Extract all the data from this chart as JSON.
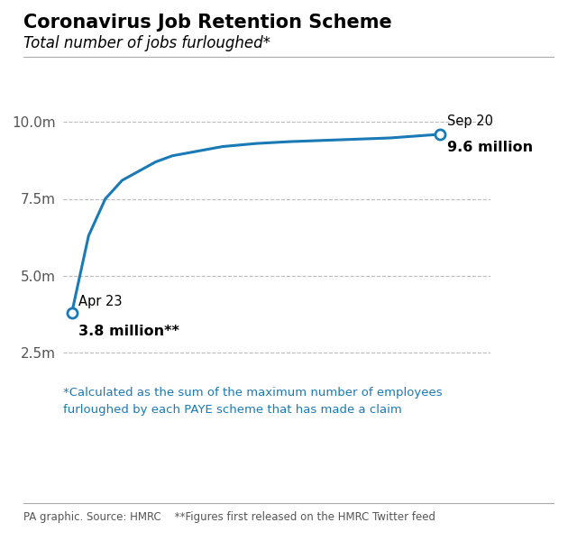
{
  "title_bold": "Coronavirus Job Retention Scheme",
  "title_italic": "Total number of jobs furloughed*",
  "line_color": "#1a7ab5",
  "background_color": "#ffffff",
  "ylim": [
    2000000,
    10800000
  ],
  "yticks": [
    2500000,
    5000000,
    7500000,
    10000000
  ],
  "ytick_labels": [
    "2.5m",
    "5.0m",
    "7.5m",
    "10.0m"
  ],
  "footnote_color": "#1a7ab5",
  "footnote_text": "*Calculated as the sum of the maximum number of employees\nfurloughed by each PAYE scheme that has made a claim",
  "source_text": "PA graphic. Source: HMRC    **Figures first released on the HMRC Twitter feed",
  "grid_color": "#bbbbbb",
  "x_data": [
    0,
    1,
    2,
    3,
    4,
    5,
    6,
    7,
    8,
    9,
    10,
    11,
    12,
    13,
    14,
    15,
    16,
    17,
    18,
    19,
    20,
    21,
    22
  ],
  "y_data": [
    3800000,
    6300000,
    7500000,
    8100000,
    8400000,
    8700000,
    8900000,
    9000000,
    9100000,
    9200000,
    9250000,
    9300000,
    9330000,
    9360000,
    9380000,
    9400000,
    9420000,
    9440000,
    9460000,
    9480000,
    9520000,
    9560000,
    9600000
  ]
}
